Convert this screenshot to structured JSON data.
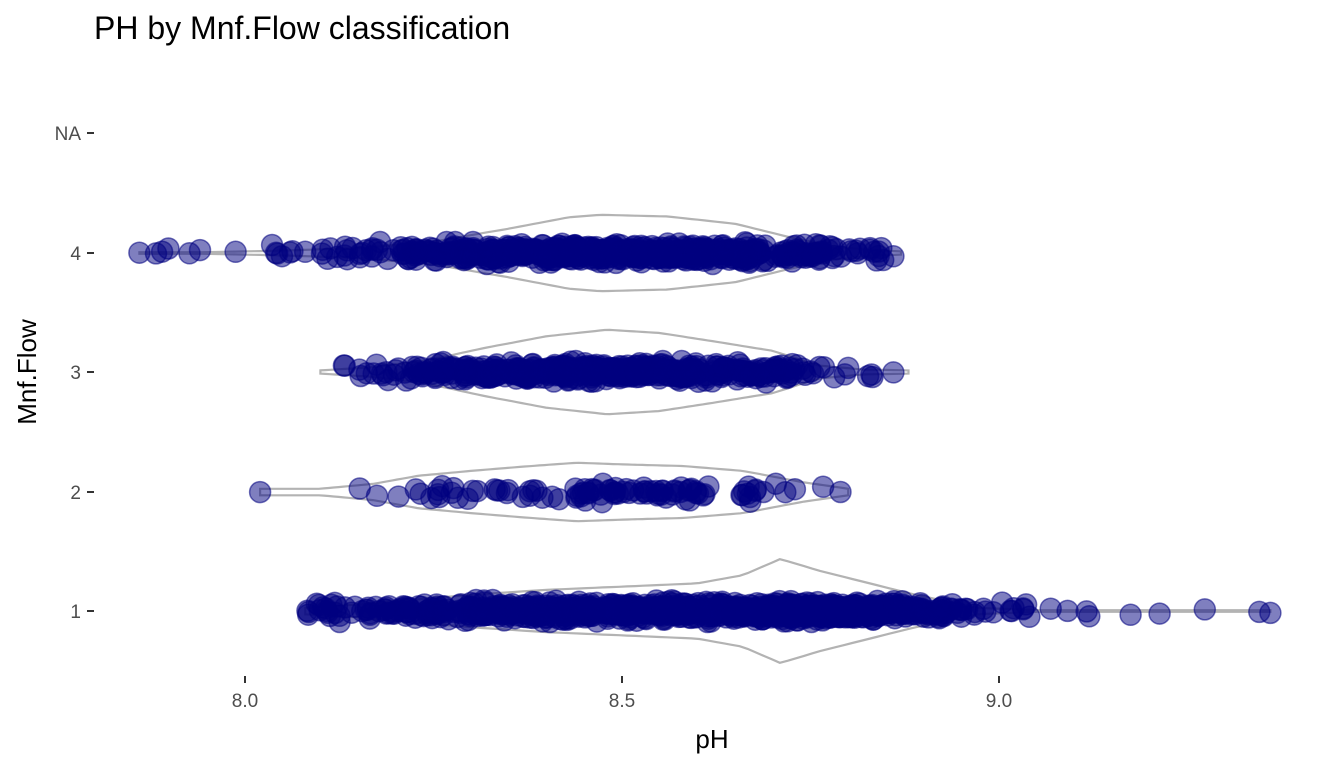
{
  "chart_data": {
    "type": "violin-jitter",
    "title": "PH by Mnf.Flow classification",
    "xlabel": "pH",
    "ylabel": "Mnf.Flow",
    "xlim": [
      7.84,
      9.41
    ],
    "x_ticks": [
      {
        "value": 8.0,
        "label": "8.0"
      },
      {
        "value": 8.5,
        "label": "8.5"
      },
      {
        "value": 9.0,
        "label": "9.0"
      }
    ],
    "categories": [
      "1",
      "2",
      "3",
      "4",
      "NA"
    ],
    "grid": false,
    "legend": "none",
    "colors": {
      "point_fill": "#000080",
      "point_opacity": 0.5,
      "violin_outline": "#b3b3b3"
    },
    "groups": [
      {
        "category": "1",
        "n": 1200,
        "min": 8.08,
        "max": 9.36,
        "mode": 8.71,
        "density": [
          [
            8.08,
            0.04
          ],
          [
            8.15,
            0.08
          ],
          [
            8.2,
            0.12
          ],
          [
            8.3,
            0.2
          ],
          [
            8.4,
            0.26
          ],
          [
            8.5,
            0.3
          ],
          [
            8.6,
            0.34
          ],
          [
            8.66,
            0.44
          ],
          [
            8.71,
            0.64
          ],
          [
            8.76,
            0.5
          ],
          [
            8.82,
            0.36
          ],
          [
            8.88,
            0.22
          ],
          [
            8.93,
            0.12
          ],
          [
            8.97,
            0.04
          ],
          [
            9.05,
            0.01
          ],
          [
            9.36,
            0.01
          ]
        ],
        "outliers": [
          9.36,
          8.95
        ]
      },
      {
        "category": "2",
        "n": 100,
        "min": 8.02,
        "max": 8.8,
        "mode": 8.44,
        "density": [
          [
            8.02,
            0.04
          ],
          [
            8.1,
            0.04
          ],
          [
            8.17,
            0.1
          ],
          [
            8.23,
            0.2
          ],
          [
            8.3,
            0.26
          ],
          [
            8.38,
            0.32
          ],
          [
            8.44,
            0.36
          ],
          [
            8.5,
            0.34
          ],
          [
            8.58,
            0.32
          ],
          [
            8.66,
            0.26
          ],
          [
            8.74,
            0.12
          ],
          [
            8.8,
            0.04
          ]
        ],
        "outliers": [
          8.02
        ]
      },
      {
        "category": "3",
        "n": 500,
        "min": 8.1,
        "max": 8.88,
        "mode": 8.48,
        "density": [
          [
            8.1,
            0.02
          ],
          [
            8.17,
            0.06
          ],
          [
            8.24,
            0.14
          ],
          [
            8.32,
            0.3
          ],
          [
            8.4,
            0.44
          ],
          [
            8.48,
            0.52
          ],
          [
            8.55,
            0.48
          ],
          [
            8.62,
            0.38
          ],
          [
            8.7,
            0.26
          ],
          [
            8.76,
            0.08
          ],
          [
            8.82,
            0.03
          ],
          [
            8.88,
            0.02
          ]
        ],
        "outliers": [
          8.86,
          8.8
        ]
      },
      {
        "category": "4",
        "n": 700,
        "min": 7.86,
        "max": 8.87,
        "mode": 8.47,
        "density": [
          [
            7.86,
            0.01
          ],
          [
            7.95,
            0.01
          ],
          [
            8.05,
            0.03
          ],
          [
            8.15,
            0.06
          ],
          [
            8.25,
            0.14
          ],
          [
            8.35,
            0.3
          ],
          [
            8.43,
            0.44
          ],
          [
            8.47,
            0.47
          ],
          [
            8.56,
            0.45
          ],
          [
            8.65,
            0.36
          ],
          [
            8.72,
            0.2
          ],
          [
            8.78,
            0.08
          ],
          [
            8.84,
            0.03
          ],
          [
            8.87,
            0.02
          ]
        ],
        "outliers": [
          7.86,
          7.89,
          8.86
        ]
      },
      {
        "category": "NA",
        "n": 0,
        "density": []
      }
    ]
  }
}
